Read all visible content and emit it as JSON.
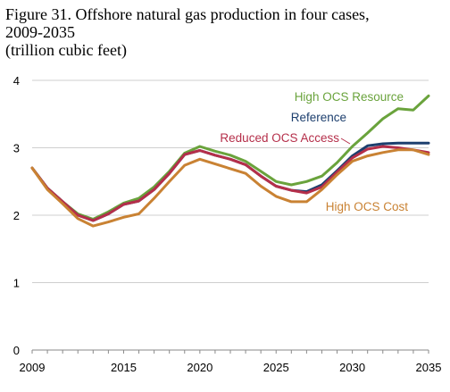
{
  "title": {
    "line1": "Figure 31. Offshore natural gas production in four cases,",
    "line2": "2009-2035",
    "line3": "(trillion cubic feet)"
  },
  "chart_data": {
    "type": "line",
    "title": "Figure 31. Offshore natural gas production in four cases, 2009-2035",
    "ylabel": "trillion cubic feet",
    "xlabel": "",
    "xlim": [
      2009,
      2035
    ],
    "ylim": [
      0,
      4
    ],
    "xticks": [
      2009,
      2015,
      2020,
      2025,
      2030,
      2035
    ],
    "yticks": [
      0,
      1,
      2,
      3,
      4
    ],
    "grid": "horizontal",
    "x": [
      2009,
      2010,
      2011,
      2012,
      2013,
      2014,
      2015,
      2016,
      2017,
      2018,
      2019,
      2020,
      2021,
      2022,
      2023,
      2024,
      2025,
      2026,
      2027,
      2028,
      2029,
      2030,
      2031,
      2032,
      2033,
      2034,
      2035
    ],
    "series": [
      {
        "name": "High OCS Resource",
        "color": "#6aa33c",
        "values": [
          2.7,
          2.4,
          2.2,
          2.02,
          1.94,
          2.05,
          2.18,
          2.25,
          2.42,
          2.65,
          2.92,
          3.02,
          2.95,
          2.89,
          2.8,
          2.65,
          2.5,
          2.45,
          2.5,
          2.58,
          2.78,
          3.02,
          3.22,
          3.43,
          3.58,
          3.56,
          3.77
        ]
      },
      {
        "name": "Reference",
        "color": "#1d3f6e",
        "values": [
          2.7,
          2.4,
          2.2,
          2.0,
          1.92,
          2.02,
          2.16,
          2.21,
          2.38,
          2.62,
          2.9,
          2.96,
          2.89,
          2.83,
          2.75,
          2.58,
          2.43,
          2.37,
          2.35,
          2.45,
          2.66,
          2.88,
          3.03,
          3.06,
          3.07,
          3.07,
          3.07
        ]
      },
      {
        "name": "Reduced OCS Access",
        "color": "#b52f4a",
        "values": [
          2.7,
          2.4,
          2.2,
          2.0,
          1.92,
          2.02,
          2.16,
          2.21,
          2.38,
          2.62,
          2.9,
          2.96,
          2.89,
          2.83,
          2.75,
          2.58,
          2.43,
          2.37,
          2.33,
          2.42,
          2.64,
          2.85,
          2.98,
          3.02,
          3.0,
          2.97,
          2.93
        ]
      },
      {
        "name": "High OCS Cost",
        "color": "#c98233",
        "values": [
          2.7,
          2.38,
          2.17,
          1.95,
          1.84,
          1.9,
          1.97,
          2.02,
          2.25,
          2.5,
          2.74,
          2.83,
          2.76,
          2.69,
          2.62,
          2.43,
          2.28,
          2.2,
          2.2,
          2.38,
          2.6,
          2.8,
          2.88,
          2.93,
          2.97,
          2.97,
          2.9
        ]
      }
    ],
    "labels": [
      {
        "series": "High OCS Resource",
        "text": "High OCS Resource"
      },
      {
        "series": "Reference",
        "text": "Reference"
      },
      {
        "series": "Reduced OCS Access",
        "text": "Reduced OCS Access"
      },
      {
        "series": "High OCS Cost",
        "text": "High OCS Cost"
      }
    ]
  }
}
